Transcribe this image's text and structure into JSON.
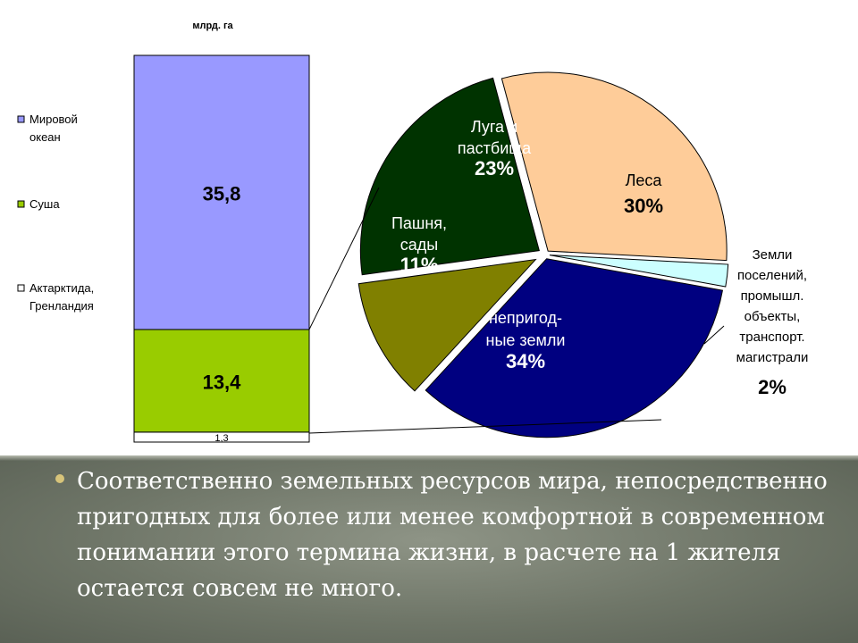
{
  "chart_data": [
    {
      "type": "bar",
      "stacked": true,
      "ylabel": "млрд. га",
      "categories": [
        ""
      ],
      "series": [
        {
          "name": "Акрарктида, Гренландия",
          "values": [
            1.3
          ],
          "label": "1,3",
          "color": "#ffffff"
        },
        {
          "name": "Суша",
          "values": [
            13.4
          ],
          "label": "13,4",
          "color": "#99cc00"
        },
        {
          "name": "Мировой океан",
          "values": [
            35.8
          ],
          "label": "35,8",
          "color": "#9999ff"
        }
      ],
      "legend_items": [
        {
          "name": "Мировой\nокеан",
          "color": "#9999ff"
        },
        {
          "name": "Суша",
          "color": "#99cc00"
        },
        {
          "name": "Актарктида,\nГренландия",
          "color": "#ffffff"
        }
      ],
      "legend": "left"
    },
    {
      "type": "pie",
      "slices": [
        {
          "name": "Леса",
          "value": 30,
          "label": "30%",
          "color": "#fecc99"
        },
        {
          "name": "Земли поселений, промышл. объекты, транспорт. магистрали",
          "value": 2,
          "label": "2%",
          "color": "#ccffff"
        },
        {
          "name": "непригод-ные земли",
          "value": 34,
          "label": "34%",
          "color": "#000080"
        },
        {
          "name": "Пашня, сады",
          "value": 11,
          "label": "11%",
          "color": "#808000"
        },
        {
          "name": "Луга и пастбища",
          "value": 23,
          "label": "23%",
          "color": "#003300"
        }
      ]
    }
  ],
  "pie_text": {
    "forest": [
      "Леса",
      "30%"
    ],
    "settlement": [
      "Земли",
      "поселений,",
      "промышл.",
      "объекты,",
      "транспорт.",
      "магистрали",
      "2%"
    ],
    "unsuitable": [
      "непригод-",
      "ные земли",
      "34%"
    ],
    "arable": [
      "Пашня,",
      "сады",
      "11%"
    ],
    "meadow": [
      "Луга и",
      "пастбища",
      "23%"
    ]
  },
  "bullet": "Соответственно земельных ресурсов мира, непосредственно пригодных для более или менее комфортной в современном понимании этого термина жизни, в расчете на 1 жителя остается совсем не много."
}
